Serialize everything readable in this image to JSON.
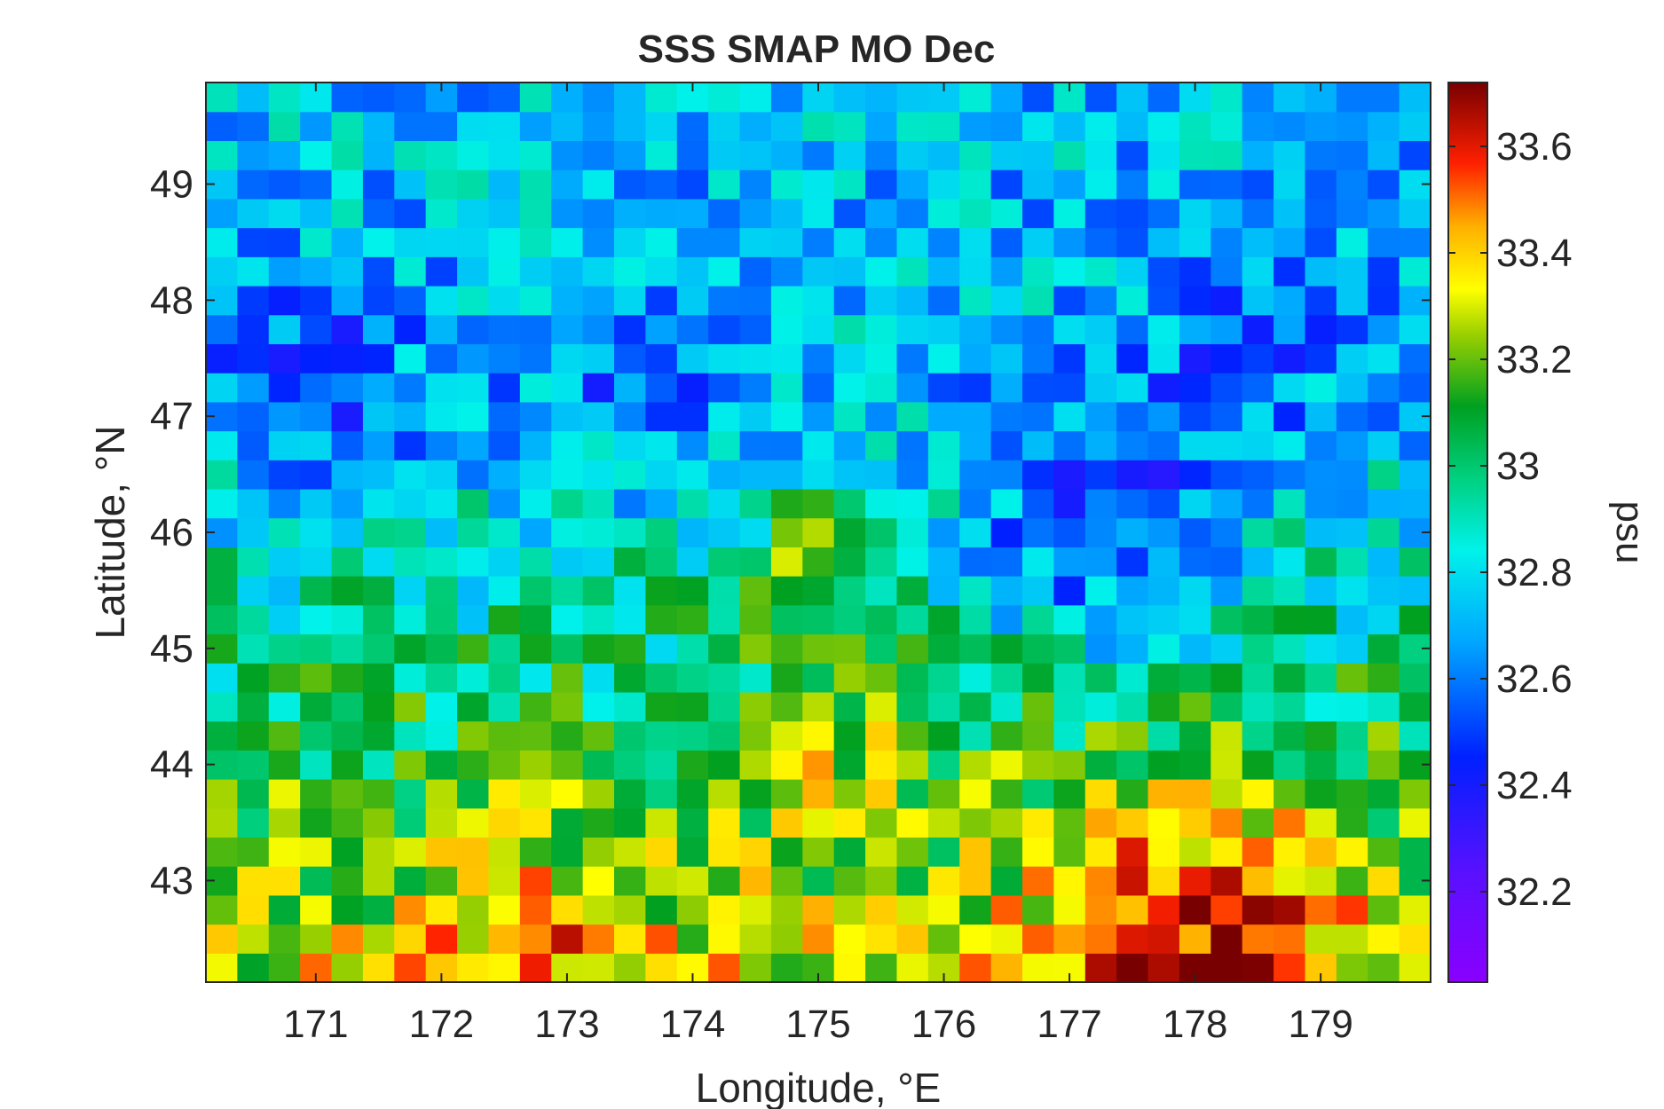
{
  "chart_data": {
    "type": "heatmap",
    "title": "SSS SMAP MO Dec",
    "xlabel": "Longitude, °E",
    "ylabel": "Latitude, °N",
    "xlim": [
      170.125,
      179.875
    ],
    "ylim": [
      42.125,
      49.875
    ],
    "x_ticks": [
      171,
      172,
      173,
      174,
      175,
      176,
      177,
      178,
      179
    ],
    "y_ticks": [
      43,
      44,
      45,
      46,
      47,
      48,
      49
    ],
    "cell_size_deg": 0.25,
    "grid": "39 columns x 31 rows",
    "colorbar": {
      "label": "psu",
      "colormap": "jet-like (violet-blue-cyan-green-yellow-red-dark red)",
      "clim": [
        32.03,
        33.72
      ],
      "ticks": [
        32.2,
        32.4,
        32.6,
        32.8,
        33,
        33.2,
        33.4,
        33.6
      ]
    },
    "value_field": {
      "north_mean": 32.72,
      "south_mean": 33.32,
      "description": "Low salinity (32.1-32.5 psu) patches in north and east around 176.5-178E 45.5-47N; high salinity (33.4-33.7 psu) along southern rows, maximum near 177-179E 42.2-43.3N; moderate high (33.2-33.5) near 174.5-175.5E 44-47N"
    },
    "colors": {
      "frame": "#262626",
      "background": "#ffffff"
    }
  }
}
